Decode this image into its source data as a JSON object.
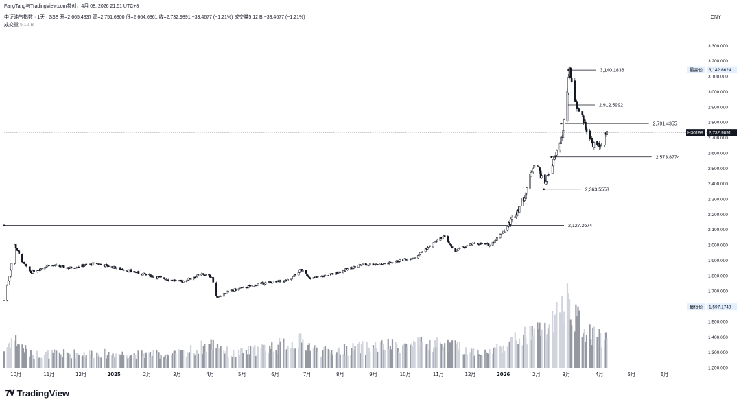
{
  "header": {
    "credit": "FangTang与TradingView.com共创，4月 08, 2026 21:51 UTC+8",
    "symbol_line": "中证油气指数 · 1天 · SSE  开=2,665.4837  高=2,751.6800  低=2,664.6861  收=2,732.9891  −33.4677 (−1.21%)  成交量5.12 B  −33.4677 (−1.21%)",
    "volume_label": "成交量",
    "volume_value": "5.12 B"
  },
  "branding": {
    "logo_text": "TradingView",
    "logo_icon": "tradingview-logo-icon"
  },
  "colors": {
    "up": "#ffffff",
    "down": "#131722",
    "volume": "#b2b5be",
    "line": "#131722",
    "price_badge": "#131722"
  },
  "chart_data": {
    "type": "candlestick",
    "currency": "CNY",
    "ylim": [
      1200000,
      3400000
    ],
    "y_ticks": [
      1200000,
      1300000,
      1400000,
      1500000,
      1600000,
      1700000,
      1800000,
      1900000,
      2000000,
      2100000,
      2200000,
      2300000,
      2400000,
      2500000,
      2600000,
      2700000,
      2800000,
      2900000,
      3000000,
      3100000,
      3200000,
      3300000
    ],
    "y_tick_labels": [
      "1,200,000",
      "1,300,000",
      "1,400,000",
      "1,500,000",
      "1,600,000",
      "1,700,000",
      "1,800,000",
      "1,900,000",
      "2,000,000",
      "2,100,000",
      "2,200,000",
      "2,300,000",
      "2,400,000",
      "2,500,000",
      "2,600,000",
      "2,700,000",
      "2,800,000",
      "2,900,000",
      "3,000,000",
      "3,100,000",
      "3,200,000",
      "3,300,000"
    ],
    "x_ticks": [
      {
        "date": "2024-10-01",
        "label": "10月"
      },
      {
        "date": "2024-11-01",
        "label": "11月"
      },
      {
        "date": "2024-12-01",
        "label": "12月"
      },
      {
        "date": "2025-01-01",
        "label": "2025"
      },
      {
        "date": "2025-02-01",
        "label": "2月"
      },
      {
        "date": "2025-03-01",
        "label": "3月"
      },
      {
        "date": "2025-04-01",
        "label": "4月"
      },
      {
        "date": "2025-05-01",
        "label": "5月"
      },
      {
        "date": "2025-06-01",
        "label": "6月"
      },
      {
        "date": "2025-07-01",
        "label": "7月"
      },
      {
        "date": "2025-08-01",
        "label": "8月"
      },
      {
        "date": "2025-09-01",
        "label": "9月"
      },
      {
        "date": "2025-10-01",
        "label": "10月"
      },
      {
        "date": "2025-11-01",
        "label": "11月"
      },
      {
        "date": "2025-12-01",
        "label": "12月"
      },
      {
        "date": "2026-01-01",
        "label": "2026"
      },
      {
        "date": "2026-02-01",
        "label": "2月"
      },
      {
        "date": "2026-03-01",
        "label": "3月"
      },
      {
        "date": "2026-04-01",
        "label": "4月"
      },
      {
        "date": "2026-05-01",
        "label": "5月"
      },
      {
        "date": "2026-06-01",
        "label": "6月"
      }
    ],
    "x_range": [
      "2024-09-20",
      "2026-06-20"
    ],
    "price_path": [
      [
        "2024-09-20",
        1640000
      ],
      [
        "2024-09-25",
        1800000
      ],
      [
        "2024-09-30",
        2000000
      ],
      [
        "2024-10-08",
        1880000
      ],
      [
        "2024-10-15",
        1820000
      ],
      [
        "2024-11-01",
        1870000
      ],
      [
        "2024-11-20",
        1850000
      ],
      [
        "2024-12-15",
        1880000
      ],
      [
        "2025-01-10",
        1840000
      ],
      [
        "2025-02-10",
        1790000
      ],
      [
        "2025-03-05",
        1760000
      ],
      [
        "2025-03-25",
        1810000
      ],
      [
        "2025-04-03",
        1790000
      ],
      [
        "2025-04-07",
        1660000
      ],
      [
        "2025-04-20",
        1700000
      ],
      [
        "2025-05-20",
        1750000
      ],
      [
        "2025-06-15",
        1770000
      ],
      [
        "2025-06-25",
        1840000
      ],
      [
        "2025-07-05",
        1780000
      ],
      [
        "2025-07-25",
        1810000
      ],
      [
        "2025-08-20",
        1870000
      ],
      [
        "2025-09-15",
        1880000
      ],
      [
        "2025-10-10",
        1920000
      ],
      [
        "2025-10-25",
        2000000
      ],
      [
        "2025-11-07",
        2060000
      ],
      [
        "2025-11-15",
        1960000
      ],
      [
        "2025-12-05",
        2010000
      ],
      [
        "2025-12-20",
        2000000
      ],
      [
        "2026-01-05",
        2120000
      ],
      [
        "2026-01-20",
        2300000
      ],
      [
        "2026-01-31",
        2560000
      ],
      [
        "2026-02-08",
        2390000
      ],
      [
        "2026-02-18",
        2560000
      ],
      [
        "2026-02-26",
        2740000
      ],
      [
        "2026-03-04",
        3140000
      ],
      [
        "2026-03-10",
        2920000
      ],
      [
        "2026-03-15",
        2850000
      ],
      [
        "2026-03-25",
        2660000
      ],
      [
        "2026-04-01",
        2640000
      ],
      [
        "2026-04-08",
        2732989
      ]
    ],
    "volume_path": [
      [
        "2024-09-20",
        1330000
      ],
      [
        "2024-09-28",
        1430000
      ],
      [
        "2024-10-15",
        1300000
      ],
      [
        "2024-12-01",
        1310000
      ],
      [
        "2025-03-01",
        1300000
      ],
      [
        "2025-04-07",
        1390000
      ],
      [
        "2025-04-20",
        1300000
      ],
      [
        "2025-06-25",
        1400000
      ],
      [
        "2025-07-15",
        1320000
      ],
      [
        "2025-09-01",
        1360000
      ],
      [
        "2025-11-05",
        1380000
      ],
      [
        "2025-12-15",
        1310000
      ],
      [
        "2026-01-15",
        1420000
      ],
      [
        "2026-02-15",
        1510000
      ],
      [
        "2026-03-03",
        1740000
      ],
      [
        "2026-03-15",
        1500000
      ],
      [
        "2026-04-08",
        1420000
      ]
    ],
    "annotations": [
      {
        "date": "2026-03-03",
        "value": 3140183.6,
        "label": "3,140.1836"
      },
      {
        "date": "2026-03-02",
        "value": 2912599.2,
        "label": "2,912.5992"
      },
      {
        "date": "2026-02-24",
        "value": 2791435.5,
        "label": "2,791.4355"
      },
      {
        "date": "2026-02-15",
        "value": 2573877.4,
        "label": "2,573.8774"
      },
      {
        "date": "2026-02-08",
        "value": 2363555.3,
        "label": "2,363.5553"
      },
      {
        "date": "2024-09-20",
        "value": 2127267.4,
        "label": "2,127.2674"
      }
    ],
    "price_markers": [
      {
        "name": "最高价",
        "value": 3142662.4,
        "label": "3,142.6624"
      },
      {
        "name": "最低价",
        "value": 1597174.8,
        "label": "1,597.1748"
      }
    ],
    "current_price": {
      "symbol": "H30198",
      "value": 2732989.1,
      "label": "2,732.9891"
    }
  }
}
